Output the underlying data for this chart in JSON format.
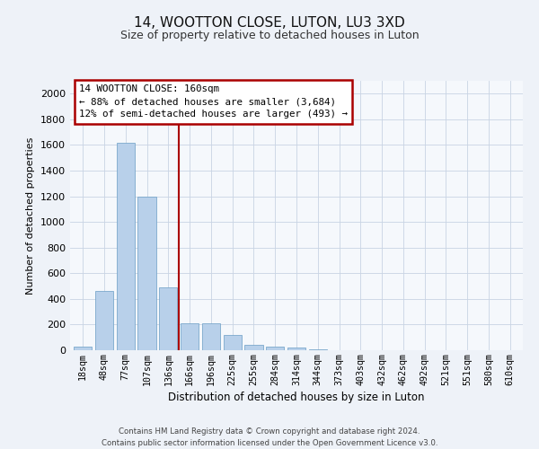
{
  "title": "14, WOOTTON CLOSE, LUTON, LU3 3XD",
  "subtitle": "Size of property relative to detached houses in Luton",
  "xlabel": "Distribution of detached houses by size in Luton",
  "ylabel": "Number of detached properties",
  "categories": [
    "18sqm",
    "48sqm",
    "77sqm",
    "107sqm",
    "136sqm",
    "166sqm",
    "196sqm",
    "225sqm",
    "255sqm",
    "284sqm",
    "314sqm",
    "344sqm",
    "373sqm",
    "403sqm",
    "432sqm",
    "462sqm",
    "492sqm",
    "521sqm",
    "551sqm",
    "580sqm",
    "610sqm"
  ],
  "values": [
    30,
    460,
    1620,
    1200,
    490,
    210,
    210,
    120,
    40,
    30,
    20,
    5,
    0,
    0,
    0,
    0,
    0,
    0,
    0,
    0,
    0
  ],
  "bar_color": "#b8d0ea",
  "bar_edge_color": "#6a9ec5",
  "vline_color": "#aa0000",
  "vline_index": 5,
  "annotation_line1": "14 WOOTTON CLOSE: 160sqm",
  "annotation_line2": "← 88% of detached houses are smaller (3,684)",
  "annotation_line3": "12% of semi-detached houses are larger (493) →",
  "annotation_box_fc": "#ffffff",
  "annotation_box_ec": "#aa0000",
  "ylim": [
    0,
    2100
  ],
  "yticks": [
    0,
    200,
    400,
    600,
    800,
    1000,
    1200,
    1400,
    1600,
    1800,
    2000
  ],
  "footer_line1": "Contains HM Land Registry data © Crown copyright and database right 2024.",
  "footer_line2": "Contains public sector information licensed under the Open Government Licence v3.0.",
  "bg_color": "#eef2f8",
  "plot_bg_color": "#f5f8fc",
  "grid_color": "#c8d4e4",
  "title_fontsize": 11,
  "subtitle_fontsize": 9
}
